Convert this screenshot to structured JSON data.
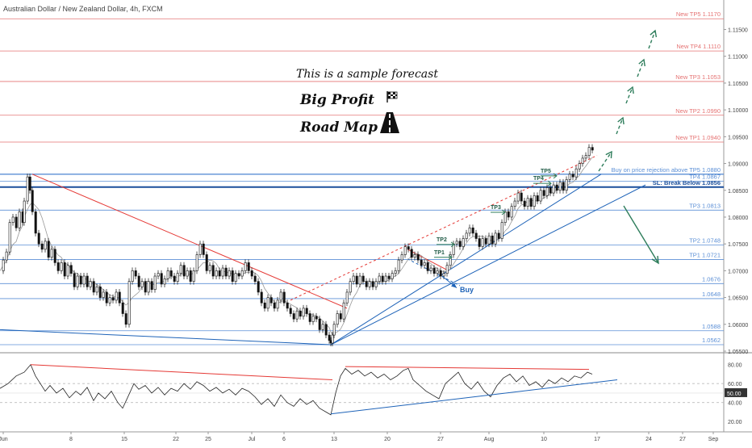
{
  "header": {
    "title": "Australian Dollar / New Zealand Dollar, 4h, FXCM"
  },
  "annotations": {
    "sample": "This is a sample forecast",
    "big_profit": "Big Profit",
    "road_map": "Road Map",
    "flag_icon": "checkered-flag-icon",
    "road_icon": "road-icon"
  },
  "colors": {
    "resistance": "#e53935",
    "support": "#1e63b8",
    "candle": "#111111",
    "level_red": "#e57373",
    "level_blue": "#5b8fd6",
    "arrow": "#2e7d5b",
    "ma": "#999999"
  },
  "chart_data": [
    {
      "type": "candlestick",
      "title": "Australian Dollar / New Zealand Dollar, 4h, FXCM",
      "ylim": [
        1.055,
        1.1205
      ],
      "yticks": [
        "1.05500",
        "1.06000",
        "1.06500",
        "1.07000",
        "1.07500",
        "1.08000",
        "1.08500",
        "1.09000",
        "1.09500",
        "1.10000",
        "1.10500",
        "1.11000",
        "1.11500",
        "1.12000"
      ],
      "xticks": [
        "Jun",
        "8",
        "15",
        "22",
        "25",
        "Jul",
        "6",
        "13",
        "20",
        "27",
        "Aug",
        "10",
        "17",
        "24",
        "27",
        "Sep"
      ],
      "levels": [
        {
          "label": "New TP5 1.1170",
          "value": 1.117,
          "color": "red"
        },
        {
          "label": "New TP4 1.1110",
          "value": 1.111,
          "color": "red"
        },
        {
          "label": "New TP3 1.1053",
          "value": 1.1053,
          "color": "red"
        },
        {
          "label": "New TP2 1.0990",
          "value": 1.099,
          "color": "red"
        },
        {
          "label": "New TP1 1.0940",
          "value": 1.094,
          "color": "red"
        },
        {
          "label": "Buy on price rejection above TP5 1.0880",
          "value": 1.088,
          "color": "blue"
        },
        {
          "label": "TP4 1.0867",
          "value": 1.0867,
          "color": "blue"
        },
        {
          "label": "SL: Break Below 1.0856",
          "value": 1.0856,
          "color": "blue"
        },
        {
          "label": "TP3 1.0813",
          "value": 1.0813,
          "color": "blue"
        },
        {
          "label": "TP2 1.0748",
          "value": 1.0748,
          "color": "blue"
        },
        {
          "label": "TP1 1.0721",
          "value": 1.0721,
          "color": "blue"
        },
        {
          "label": "1.0676",
          "value": 1.0676,
          "color": "blue"
        },
        {
          "label": "1.0648",
          "value": 1.0648,
          "color": "blue"
        },
        {
          "label": "1.0588",
          "value": 1.0588,
          "color": "blue"
        },
        {
          "label": "1.0562",
          "value": 1.0562,
          "color": "blue"
        }
      ],
      "trade_labels": [
        "TP1",
        "TP2",
        "TP3",
        "TP4",
        "TP5",
        "Buy"
      ],
      "path": [
        [
          0,
          1.07
        ],
        [
          4,
          1.072
        ],
        [
          8,
          1.0735
        ],
        [
          12,
          1.079
        ],
        [
          16,
          1.08
        ],
        [
          20,
          1.078
        ],
        [
          24,
          1.081
        ],
        [
          28,
          1.079
        ],
        [
          30,
          1.083
        ],
        [
          34,
          1.0875
        ],
        [
          37,
          1.085
        ],
        [
          40,
          1.081
        ],
        [
          44,
          1.077
        ],
        [
          48,
          1.075
        ],
        [
          52,
          1.074
        ],
        [
          56,
          1.0755
        ],
        [
          60,
          1.0725
        ],
        [
          64,
          1.074
        ],
        [
          68,
          1.0715
        ],
        [
          72,
          1.07
        ],
        [
          76,
          1.0715
        ],
        [
          80,
          1.069
        ],
        [
          84,
          1.071
        ],
        [
          88,
          1.0695
        ],
        [
          92,
          1.067
        ],
        [
          96,
          1.069
        ],
        [
          100,
          1.0675
        ],
        [
          104,
          1.069
        ],
        [
          108,
          1.067
        ],
        [
          112,
          1.068
        ],
        [
          116,
          1.066
        ],
        [
          120,
          1.067
        ],
        [
          124,
          1.065
        ],
        [
          128,
          1.066
        ],
        [
          132,
          1.064
        ],
        [
          136,
          1.065
        ],
        [
          140,
          1.0645
        ],
        [
          144,
          1.066
        ],
        [
          148,
          1.064
        ],
        [
          152,
          1.062
        ],
        [
          156,
          1.06
        ],
        [
          160,
          1.068
        ],
        [
          164,
          1.07
        ],
        [
          168,
          1.069
        ],
        [
          172,
          1.067
        ],
        [
          176,
          1.068
        ],
        [
          180,
          1.066
        ],
        [
          184,
          1.068
        ],
        [
          188,
          1.0665
        ],
        [
          192,
          1.069
        ],
        [
          196,
          1.0695
        ],
        [
          200,
          1.0675
        ],
        [
          204,
          1.0685
        ],
        [
          208,
          1.07
        ],
        [
          212,
          1.069
        ],
        [
          216,
          1.068
        ],
        [
          220,
          1.0695
        ],
        [
          224,
          1.071
        ],
        [
          228,
          1.069
        ],
        [
          232,
          1.07
        ],
        [
          236,
          1.068
        ],
        [
          240,
          1.07
        ],
        [
          244,
          1.073
        ],
        [
          248,
          1.075
        ],
        [
          252,
          1.073
        ],
        [
          256,
          1.07
        ],
        [
          260,
          1.071
        ],
        [
          264,
          1.069
        ],
        [
          268,
          1.07
        ],
        [
          272,
          1.069
        ],
        [
          276,
          1.0705
        ],
        [
          280,
          1.069
        ],
        [
          284,
          1.07
        ],
        [
          288,
          1.068
        ],
        [
          292,
          1.0695
        ],
        [
          296,
          1.069
        ],
        [
          300,
          1.07
        ],
        [
          304,
          1.0715
        ],
        [
          308,
          1.07
        ],
        [
          312,
          1.069
        ],
        [
          316,
          1.068
        ],
        [
          320,
          1.066
        ],
        [
          324,
          1.064
        ],
        [
          328,
          1.063
        ],
        [
          332,
          1.065
        ],
        [
          336,
          1.064
        ],
        [
          340,
          1.063
        ],
        [
          344,
          1.0645
        ],
        [
          348,
          1.066
        ],
        [
          352,
          1.064
        ],
        [
          356,
          1.063
        ],
        [
          360,
          1.062
        ],
        [
          364,
          1.061
        ],
        [
          368,
          1.0625
        ],
        [
          372,
          1.0615
        ],
        [
          376,
          1.063
        ],
        [
          380,
          1.062
        ],
        [
          384,
          1.0605
        ],
        [
          388,
          1.0615
        ],
        [
          392,
          1.061
        ],
        [
          396,
          1.059
        ],
        [
          400,
          1.06
        ],
        [
          404,
          1.058
        ],
        [
          408,
          1.057
        ],
        [
          410,
          1.0565
        ],
        [
          412,
          1.058
        ],
        [
          414,
          1.06
        ],
        [
          418,
          1.062
        ],
        [
          422,
          1.061
        ],
        [
          426,
          1.064
        ],
        [
          430,
          1.066
        ],
        [
          434,
          1.068
        ],
        [
          438,
          1.069
        ],
        [
          442,
          1.0675
        ],
        [
          446,
          1.069
        ],
        [
          450,
          1.068
        ],
        [
          454,
          1.067
        ],
        [
          458,
          1.068
        ],
        [
          462,
          1.067
        ],
        [
          466,
          1.068
        ],
        [
          470,
          1.069
        ],
        [
          474,
          1.068
        ],
        [
          478,
          1.069
        ],
        [
          482,
          1.0685
        ],
        [
          486,
          1.0695
        ],
        [
          490,
          1.07
        ],
        [
          494,
          1.072
        ],
        [
          498,
          1.073
        ],
        [
          502,
          1.0745
        ],
        [
          506,
          1.074
        ],
        [
          510,
          1.0725
        ],
        [
          514,
          1.073
        ],
        [
          518,
          1.072
        ],
        [
          522,
          1.071
        ],
        [
          526,
          1.0715
        ],
        [
          530,
          1.07
        ],
        [
          534,
          1.0705
        ],
        [
          538,
          1.0695
        ],
        [
          542,
          1.07
        ],
        [
          546,
          1.069
        ],
        [
          550,
          1.0695
        ],
        [
          554,
          1.071
        ],
        [
          558,
          1.073
        ],
        [
          562,
          1.075
        ],
        [
          566,
          1.0755
        ],
        [
          570,
          1.0745
        ],
        [
          574,
          1.076
        ],
        [
          578,
          1.077
        ],
        [
          582,
          1.078
        ],
        [
          586,
          1.077
        ],
        [
          590,
          1.076
        ],
        [
          594,
          1.0745
        ],
        [
          598,
          1.076
        ],
        [
          602,
          1.075
        ],
        [
          606,
          1.0765
        ],
        [
          610,
          1.075
        ],
        [
          614,
          1.077
        ],
        [
          618,
          1.076
        ],
        [
          622,
          1.079
        ],
        [
          626,
          1.081
        ],
        [
          630,
          1.08
        ],
        [
          634,
          1.082
        ],
        [
          638,
          1.083
        ],
        [
          642,
          1.0845
        ],
        [
          646,
          1.083
        ],
        [
          650,
          1.082
        ],
        [
          654,
          1.0835
        ],
        [
          658,
          1.082
        ],
        [
          662,
          1.084
        ],
        [
          666,
          1.083
        ],
        [
          670,
          1.085
        ],
        [
          674,
          1.084
        ],
        [
          678,
          1.0855
        ],
        [
          682,
          1.0845
        ],
        [
          686,
          1.086
        ],
        [
          690,
          1.085
        ],
        [
          694,
          1.0865
        ],
        [
          698,
          1.085
        ],
        [
          702,
          1.087
        ],
        [
          706,
          1.088
        ],
        [
          710,
          1.0875
        ],
        [
          714,
          1.089
        ],
        [
          718,
          1.09
        ],
        [
          722,
          1.091
        ],
        [
          726,
          1.0915
        ],
        [
          730,
          1.093
        ],
        [
          734,
          1.0925
        ]
      ]
    },
    {
      "type": "line",
      "title": "",
      "ylim": [
        15,
        90
      ],
      "yticks": [
        "20.00",
        "40.00",
        "50.00",
        "60.00",
        "80.00"
      ],
      "value_label": "50.00",
      "path": [
        [
          0,
          55
        ],
        [
          10,
          60
        ],
        [
          20,
          68
        ],
        [
          30,
          72
        ],
        [
          38,
          80
        ],
        [
          44,
          68
        ],
        [
          50,
          60
        ],
        [
          56,
          52
        ],
        [
          62,
          58
        ],
        [
          70,
          50
        ],
        [
          78,
          55
        ],
        [
          86,
          45
        ],
        [
          94,
          52
        ],
        [
          100,
          48
        ],
        [
          108,
          56
        ],
        [
          116,
          42
        ],
        [
          122,
          50
        ],
        [
          130,
          44
        ],
        [
          138,
          52
        ],
        [
          146,
          40
        ],
        [
          152,
          34
        ],
        [
          158,
          45
        ],
        [
          166,
          60
        ],
        [
          172,
          54
        ],
        [
          180,
          58
        ],
        [
          188,
          50
        ],
        [
          196,
          56
        ],
        [
          204,
          48
        ],
        [
          212,
          55
        ],
        [
          220,
          52
        ],
        [
          228,
          60
        ],
        [
          236,
          54
        ],
        [
          244,
          62
        ],
        [
          252,
          58
        ],
        [
          260,
          52
        ],
        [
          268,
          56
        ],
        [
          276,
          50
        ],
        [
          284,
          54
        ],
        [
          292,
          48
        ],
        [
          300,
          55
        ],
        [
          308,
          52
        ],
        [
          316,
          46
        ],
        [
          324,
          38
        ],
        [
          332,
          44
        ],
        [
          340,
          36
        ],
        [
          348,
          48
        ],
        [
          356,
          40
        ],
        [
          364,
          36
        ],
        [
          372,
          44
        ],
        [
          380,
          38
        ],
        [
          388,
          42
        ],
        [
          396,
          34
        ],
        [
          404,
          30
        ],
        [
          410,
          27
        ],
        [
          416,
          50
        ],
        [
          422,
          68
        ],
        [
          428,
          76
        ],
        [
          436,
          70
        ],
        [
          444,
          74
        ],
        [
          452,
          68
        ],
        [
          460,
          72
        ],
        [
          468,
          66
        ],
        [
          476,
          70
        ],
        [
          484,
          64
        ],
        [
          492,
          68
        ],
        [
          500,
          74
        ],
        [
          506,
          76
        ],
        [
          512,
          64
        ],
        [
          520,
          58
        ],
        [
          528,
          52
        ],
        [
          536,
          48
        ],
        [
          544,
          44
        ],
        [
          552,
          60
        ],
        [
          560,
          66
        ],
        [
          568,
          72
        ],
        [
          576,
          60
        ],
        [
          584,
          54
        ],
        [
          592,
          62
        ],
        [
          600,
          52
        ],
        [
          608,
          46
        ],
        [
          616,
          58
        ],
        [
          624,
          66
        ],
        [
          632,
          70
        ],
        [
          640,
          62
        ],
        [
          648,
          68
        ],
        [
          656,
          58
        ],
        [
          664,
          62
        ],
        [
          672,
          56
        ],
        [
          680,
          64
        ],
        [
          688,
          60
        ],
        [
          696,
          66
        ],
        [
          704,
          62
        ],
        [
          712,
          68
        ],
        [
          720,
          66
        ],
        [
          728,
          72
        ],
        [
          734,
          70
        ]
      ]
    }
  ]
}
